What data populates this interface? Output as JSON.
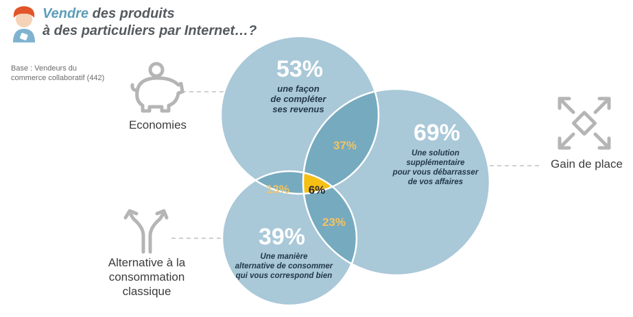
{
  "header": {
    "title_accent": "Vendre",
    "title_rest1": " des produits",
    "title_line2": "à des particuliers par Internet…?",
    "base_line1": "Base : Vendeurs du",
    "base_line2": "commerce collaboratif (442)"
  },
  "labels": {
    "economies": "Economies",
    "gain": "Gain de place",
    "alt1": "Alternative à la",
    "alt2": "consommation",
    "alt3": "classique"
  },
  "icons": {
    "economies": "piggy-bank-icon",
    "gain": "expand-arrows-icon",
    "alternative": "split-arrows-icon"
  },
  "colors": {
    "circle_fill": "#a9c8d8",
    "overlap_fill": "#76aabf",
    "center_fill": "#f6bf14",
    "dark_text": "#22384a",
    "light_pct": "#f3c563"
  },
  "sets": {
    "top": {
      "value": "53%",
      "d1": "une façon",
      "d2": "de compléter",
      "d3": "ses revenus"
    },
    "right": {
      "value": "69%",
      "d1": "Une solution",
      "d2": "supplémentaire",
      "d3": "pour vous débarrasser",
      "d4": "de vos affaires"
    },
    "bottom": {
      "value": "39%",
      "d1": "Une manière",
      "d2": "alternative de consommer",
      "d3": "qui vous correspond bien"
    }
  },
  "overlaps": {
    "top_right": "37%",
    "top_bottom": "13%",
    "right_bottom": "23%",
    "all": "6%"
  }
}
